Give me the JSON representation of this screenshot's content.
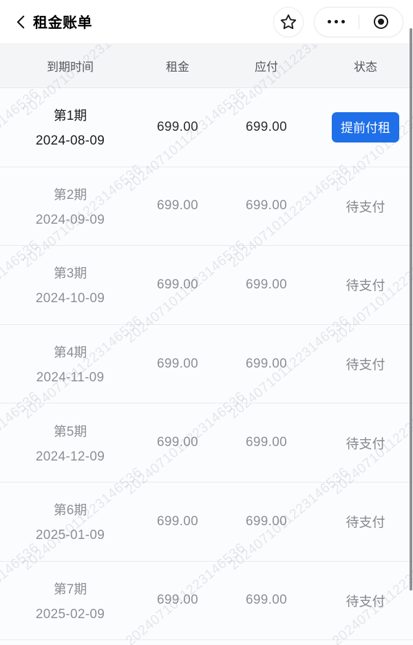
{
  "navbar": {
    "title": "租金账单",
    "back_icon": "chevron-left",
    "favorite_icon": "star",
    "more_icon": "ellipsis",
    "minimize_icon": "target-circle"
  },
  "watermark": {
    "text": "2024071011223146536"
  },
  "table": {
    "headers": [
      "到期时间",
      "租金",
      "应付",
      "状态"
    ],
    "header_keys": [
      "due-date",
      "rent",
      "payable",
      "status"
    ],
    "rows": [
      {
        "period": "第1期",
        "due_date": "2024-08-09",
        "rent": "699.00",
        "payable": "699.00",
        "status": "提前付租",
        "status_type": "button"
      },
      {
        "period": "第2期",
        "due_date": "2024-09-09",
        "rent": "699.00",
        "payable": "699.00",
        "status": "待支付",
        "status_type": "text"
      },
      {
        "period": "第3期",
        "due_date": "2024-10-09",
        "rent": "699.00",
        "payable": "699.00",
        "status": "待支付",
        "status_type": "text"
      },
      {
        "period": "第4期",
        "due_date": "2024-11-09",
        "rent": "699.00",
        "payable": "699.00",
        "status": "待支付",
        "status_type": "text"
      },
      {
        "period": "第5期",
        "due_date": "2024-12-09",
        "rent": "699.00",
        "payable": "699.00",
        "status": "待支付",
        "status_type": "text"
      },
      {
        "period": "第6期",
        "due_date": "2025-01-09",
        "rent": "699.00",
        "payable": "699.00",
        "status": "待支付",
        "status_type": "text"
      },
      {
        "period": "第7期",
        "due_date": "2025-02-09",
        "rent": "699.00",
        "payable": "699.00",
        "status": "待支付",
        "status_type": "text"
      }
    ]
  },
  "colors": {
    "accent_blue": "#1f6fe8",
    "pending_gray": "#85888c",
    "header_bg": "#f3f5f7"
  }
}
